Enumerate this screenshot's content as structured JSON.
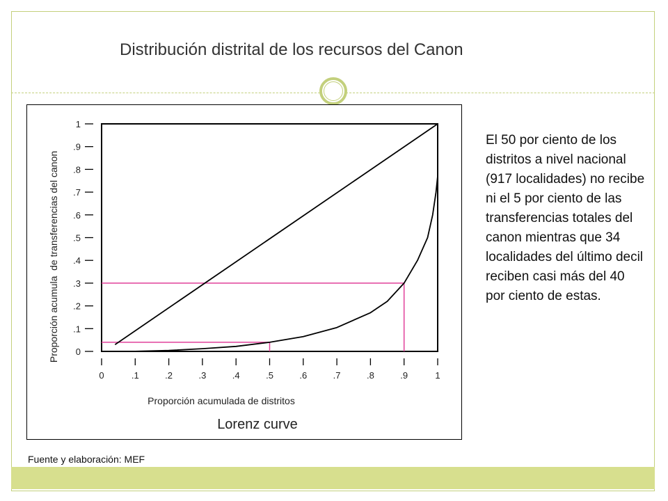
{
  "slide": {
    "title": "Distribución distrital de los recursos del Canon",
    "description": "El 50 por ciento de los distritos a nivel nacional (917 localidades) no recibe ni el 5 por ciento de las transferencias totales del canon mientras que 34 localidades del último decil reciben casi más del 40 por ciento de estas.",
    "source": "Fuente y elaboración: MEF",
    "accent_color": "#c3d07c",
    "band_color": "#d7df8e"
  },
  "chart_data": {
    "type": "line",
    "title": "Lorenz curve",
    "xlabel": "Proporción acumulada de distritos",
    "ylabel": "Proporción acumula  de transferencias del canon",
    "xlim": [
      0,
      1
    ],
    "ylim": [
      0,
      1
    ],
    "x_ticks": [
      "0",
      ".1",
      ".2",
      ".3",
      ".4",
      ".5",
      ".6",
      ".7",
      ".8",
      ".9",
      "1"
    ],
    "y_ticks": [
      "0",
      ".1",
      ".2",
      ".3",
      ".4",
      ".5",
      ".6",
      ".7",
      ".8",
      ".9",
      "1"
    ],
    "series": [
      {
        "color": "#000000",
        "points": [
          [
            0.04,
            0.03
          ],
          [
            1.0,
            1.0
          ]
        ]
      },
      {
        "color": "#000000",
        "points": [
          [
            0.09,
            0.0
          ],
          [
            0.2,
            0.004
          ],
          [
            0.3,
            0.012
          ],
          [
            0.4,
            0.022
          ],
          [
            0.5,
            0.04
          ],
          [
            0.6,
            0.065
          ],
          [
            0.7,
            0.105
          ],
          [
            0.8,
            0.17
          ],
          [
            0.85,
            0.22
          ],
          [
            0.9,
            0.3
          ],
          [
            0.94,
            0.4
          ],
          [
            0.97,
            0.5
          ],
          [
            0.985,
            0.6
          ],
          [
            0.995,
            0.7
          ],
          [
            1.0,
            0.77
          ]
        ]
      }
    ],
    "reference_lines": [
      {
        "color": "#e0409a",
        "x": 0.5,
        "y": 0.04
      },
      {
        "color": "#e0409a",
        "x": 0.9,
        "y": 0.3
      }
    ],
    "grid": false
  }
}
